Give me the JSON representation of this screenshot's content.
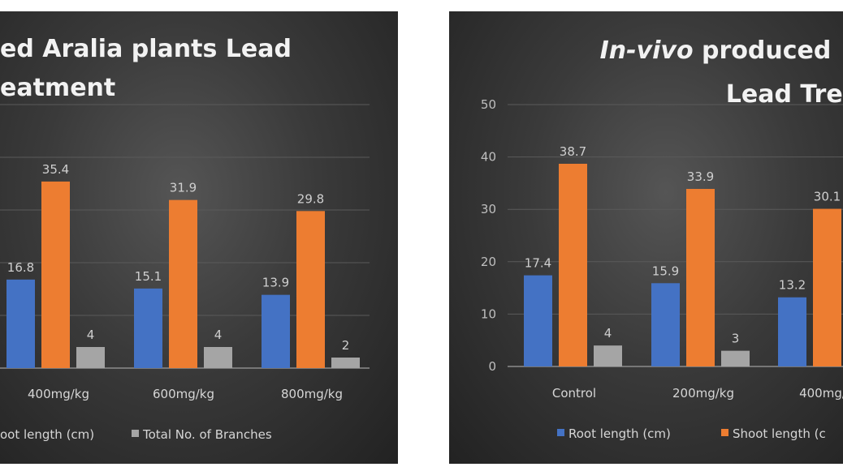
{
  "colors": {
    "root": "#4472c4",
    "shoot": "#ed7d31",
    "branches": "#a5a5a5",
    "grid": "#5a5a5a",
    "axis": "#8c8c8c"
  },
  "chart_data": [
    {
      "type": "bar",
      "title_lines": [
        "ed Aralia plants Lead",
        "eatment"
      ],
      "categories": [
        "400mg/kg",
        "600mg/kg",
        "800mg/kg"
      ],
      "series": [
        {
          "name": "",
          "values": [
            16.8,
            15.1,
            13.9
          ]
        },
        {
          "name": "oot length (cm)",
          "values": [
            35.4,
            31.9,
            29.8
          ]
        },
        {
          "name": "Total No. of Branches",
          "values": [
            4,
            4,
            2
          ]
        }
      ],
      "ylim": [
        0,
        50
      ],
      "grid": true,
      "legend": "bottom"
    },
    {
      "type": "bar",
      "title_lines": [
        [
          {
            "text": "In-vivo",
            "italic": true
          },
          {
            "text": " produced",
            "italic": false
          }
        ],
        [
          {
            "text": "Lead Treat",
            "italic": false
          }
        ]
      ],
      "yticks": [
        "0",
        "10",
        "20",
        "30",
        "40",
        "50"
      ],
      "categories": [
        "Control",
        "200mg/kg",
        "400mg/"
      ],
      "series": [
        {
          "name": "Root length (cm)",
          "values": [
            17.4,
            15.9,
            13.2
          ]
        },
        {
          "name": "Shoot length (c",
          "values": [
            38.7,
            33.9,
            30.1
          ]
        },
        {
          "name": "",
          "values": [
            4,
            3,
            null
          ]
        }
      ],
      "ylim": [
        0,
        50
      ],
      "grid": true,
      "legend": "bottom"
    }
  ]
}
